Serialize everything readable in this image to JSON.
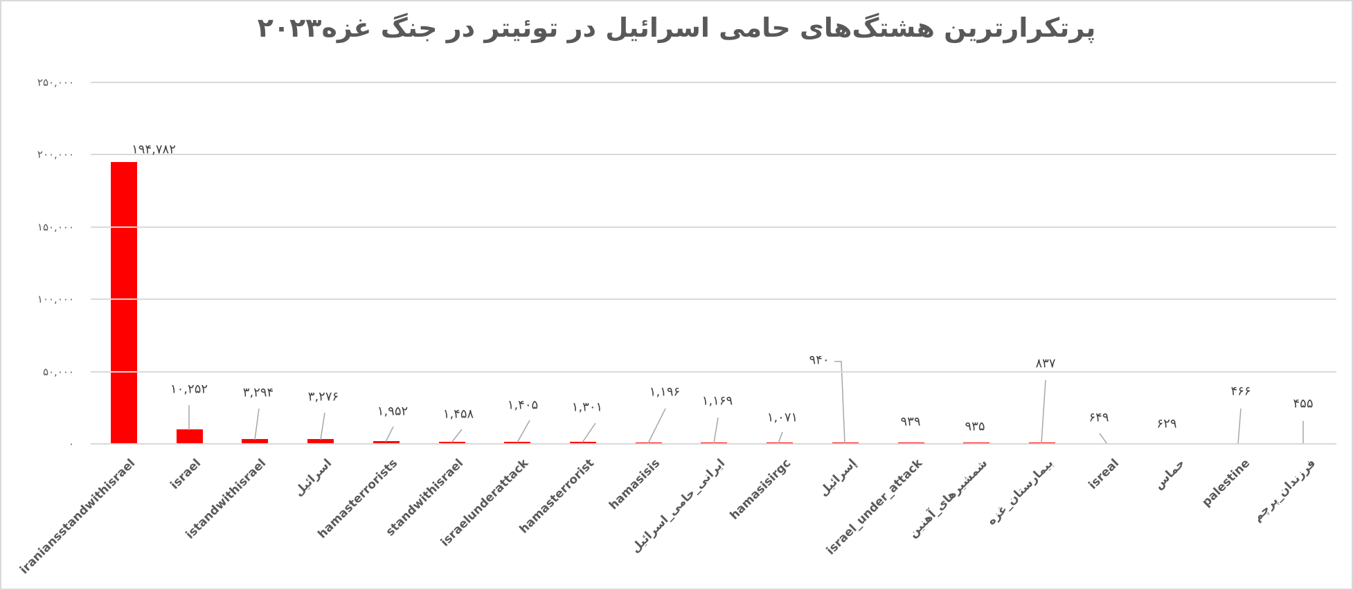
{
  "title": "پرتکرارترین هشتگ‌های حامی اسرائیل در توئیتر در جنگ غزه۲۰۲۳",
  "colors": {
    "bar": "#ff0000",
    "grid": "#d9d9d9",
    "text": "#595959",
    "leader": "#a6a6a6"
  },
  "y_axis": {
    "ticks": [
      {
        "value": 250000,
        "label": "۲۵۰,۰۰۰"
      },
      {
        "value": 200000,
        "label": "۲۰۰,۰۰۰"
      },
      {
        "value": 150000,
        "label": "۱۵۰,۰۰۰"
      },
      {
        "value": 100000,
        "label": "۱۰۰,۰۰۰"
      },
      {
        "value": 50000,
        "label": "۵۰,۰۰۰"
      },
      {
        "value": 0,
        "label": "۰"
      }
    ]
  },
  "chart_data": {
    "type": "bar",
    "title": "پرتکرارترین هشتگ‌های حامی اسرائیل در توئیتر در جنگ غزه۲۰۲۳",
    "xlabel": "",
    "ylabel": "",
    "ylim": [
      0,
      250000
    ],
    "grid": true,
    "legend": "none",
    "categories": [
      "iraniansstandwithisrael",
      "israel",
      "istandwithisrael",
      "اسرائیل",
      "hamasterrorists",
      "standwithisrael",
      "israelunderattack",
      "hamasterrorist",
      "hamasisis",
      "ایرانی_حامی_اسرائیل",
      "hamasisirgc",
      "إسرائيل",
      "israel_under_attack",
      "شمشیرهای_آهنین",
      "بیمارستان_غزه",
      "isreal",
      "حماس",
      "palestine",
      "فرزندان_پرچم"
    ],
    "values": [
      194782,
      10252,
      3294,
      3276,
      1952,
      1458,
      1405,
      1301,
      1196,
      1169,
      1071,
      940,
      939,
      935,
      837,
      649,
      629,
      466,
      455
    ],
    "value_labels": [
      "۱۹۴,۷۸۲",
      "۱۰,۲۵۲",
      "۳,۲۹۴",
      "۳,۲۷۶",
      "۱,۹۵۲",
      "۱,۴۵۸",
      "۱,۴۰۵",
      "۱,۳۰۱",
      "۱,۱۹۶",
      "۱,۱۶۹",
      "۱,۰۷۱",
      "۹۴۰",
      "۹۳۹",
      "۹۳۵",
      "۸۳۷",
      "۶۴۹",
      "۶۲۹",
      "۴۶۶",
      "۴۵۵"
    ]
  }
}
